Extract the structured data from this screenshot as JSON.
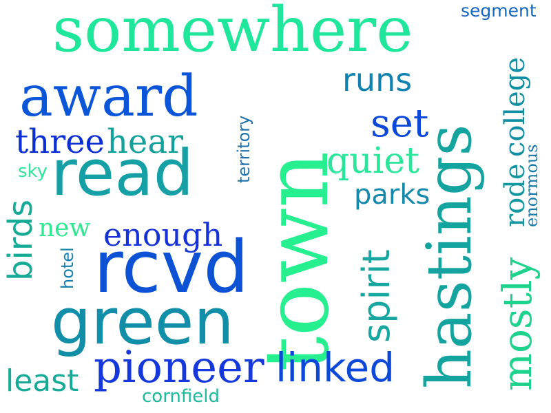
{
  "words": {
    "somewhere": {
      "text": "somewhere",
      "color": "#1ee69a"
    },
    "segment": {
      "text": "segment",
      "color": "#1467c2"
    },
    "award": {
      "text": "award",
      "color": "#0a55d8"
    },
    "runs": {
      "text": "runs",
      "color": "#0f82b0"
    },
    "town": {
      "text": "town",
      "color": "#25ef8e"
    },
    "hastings": {
      "text": "hastings",
      "color": "#14a4a0"
    },
    "college": {
      "text": "college",
      "color": "#0f8fa4"
    },
    "set": {
      "text": "set",
      "color": "#0b47d8"
    },
    "three": {
      "text": "three",
      "color": "#0c2fd4"
    },
    "hear": {
      "text": "hear",
      "color": "#12a09b"
    },
    "territory": {
      "text": "territory",
      "color": "#1f72ab"
    },
    "quiet": {
      "text": "quiet",
      "color": "#2ae69a"
    },
    "rode": {
      "text": "rode",
      "color": "#1397a0"
    },
    "enormous": {
      "text": "enormous",
      "color": "#1b79a8"
    },
    "sky": {
      "text": "sky",
      "color": "#2ee59a"
    },
    "read": {
      "text": "read",
      "color": "#14a0a4"
    },
    "parks": {
      "text": "parks",
      "color": "#1489ab"
    },
    "birds": {
      "text": "birds",
      "color": "#14aa96"
    },
    "new": {
      "text": "new",
      "color": "#2ee890"
    },
    "enough": {
      "text": "enough",
      "color": "#1432d8"
    },
    "mostly": {
      "text": "mostly",
      "color": "#1cd28c"
    },
    "hotel": {
      "text": "hotel",
      "color": "#1580b0"
    },
    "rcvd": {
      "text": "rcvd",
      "color": "#0d52d4"
    },
    "spirit": {
      "text": "spirit",
      "color": "#16a8a0"
    },
    "green": {
      "text": "green",
      "color": "#118ea8"
    },
    "pioneer": {
      "text": "pioneer",
      "color": "#1438dc"
    },
    "linked": {
      "text": "linked",
      "color": "#0c48d8"
    },
    "least": {
      "text": "least",
      "color": "#18aa98"
    },
    "cornfield": {
      "text": "cornfield",
      "color": "#1eb89a"
    }
  }
}
